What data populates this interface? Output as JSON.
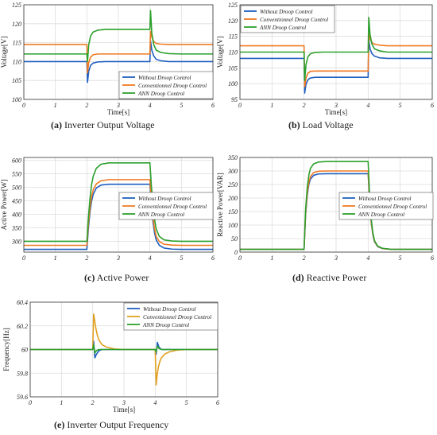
{
  "chart_data": [
    {
      "type": "line",
      "id": "a",
      "caption_letter": "(a)",
      "caption_text": "Inverter Output Voltage",
      "xlabel": "Time[s]",
      "ylabel": "Voltage[V]",
      "xlim": [
        0,
        6
      ],
      "ylim": [
        100,
        125
      ],
      "xticks": [
        "0",
        "1",
        "2",
        "3",
        "4",
        "5",
        "6"
      ],
      "yticks": [
        "100",
        "105",
        "110",
        "115",
        "120",
        "125"
      ],
      "grid": true,
      "legend_position": "bottom-right",
      "series": [
        {
          "name": "Without Droop Control",
          "color": "#1f5fbf",
          "x": [
            0,
            1.99,
            2.0,
            2.02,
            2.06,
            2.12,
            2.2,
            2.35,
            2.6,
            3,
            3.5,
            3.99,
            4.0,
            4.02,
            4.06,
            4.12,
            4.2,
            4.35,
            4.6,
            5,
            6
          ],
          "y": [
            110,
            110,
            110,
            104.5,
            107.5,
            109,
            109.6,
            109.9,
            110,
            110,
            110,
            110,
            110,
            115.5,
            113,
            111.5,
            110.6,
            110.2,
            110,
            110,
            110
          ]
        },
        {
          "name": "Conventionnel Droop Control",
          "color": "#f07a22",
          "x": [
            0,
            1.99,
            2.0,
            2.02,
            2.06,
            2.12,
            2.2,
            2.35,
            2.6,
            3,
            3.5,
            3.99,
            4.0,
            4.02,
            4.06,
            4.12,
            4.2,
            4.35,
            4.6,
            5,
            6
          ],
          "y": [
            114.5,
            114.5,
            114.5,
            107,
            109.8,
            111.2,
            111.8,
            112,
            112,
            112,
            112,
            112,
            112,
            118,
            116.5,
            115.3,
            114.8,
            114.6,
            114.5,
            114.5,
            114.5
          ]
        },
        {
          "name": "ANN Droop Control",
          "color": "#2ca02c",
          "x": [
            0,
            1.99,
            2.0,
            2.02,
            2.06,
            2.12,
            2.2,
            2.35,
            2.6,
            3,
            3.5,
            3.99,
            4.0,
            4.02,
            4.06,
            4.12,
            4.2,
            4.35,
            4.6,
            5,
            6
          ],
          "y": [
            112,
            112,
            112,
            110,
            114.5,
            116.8,
            117.8,
            118.3,
            118.5,
            118.5,
            118.5,
            118.5,
            118.5,
            123.5,
            117.5,
            114.5,
            113,
            112.4,
            112.1,
            112,
            112
          ]
        }
      ]
    },
    {
      "type": "line",
      "id": "b",
      "caption_letter": "(b)",
      "caption_text": "Load Voltage",
      "xlabel": "Time[s]",
      "ylabel": "Voltage[V]",
      "xlim": [
        0,
        6
      ],
      "ylim": [
        95,
        125
      ],
      "xticks": [
        "0",
        "1",
        "2",
        "3",
        "4",
        "5",
        "6"
      ],
      "yticks": [
        "95",
        "100",
        "105",
        "110",
        "115",
        "120",
        "125"
      ],
      "grid": true,
      "legend_position": "top-left",
      "series": [
        {
          "name": "Without Droop Control",
          "color": "#1f5fbf",
          "x": [
            0,
            1.99,
            2.0,
            2.02,
            2.06,
            2.12,
            2.2,
            2.35,
            2.6,
            3,
            3.5,
            3.99,
            4.0,
            4.02,
            4.06,
            4.12,
            4.2,
            4.35,
            4.6,
            5,
            6
          ],
          "y": [
            108,
            108,
            108,
            97,
            99.8,
            101.2,
            101.8,
            102,
            102,
            102,
            102,
            102,
            102,
            114,
            111,
            109.5,
            108.7,
            108.2,
            108,
            108,
            108
          ]
        },
        {
          "name": "Conventionnel Droop Control",
          "color": "#f07a22",
          "x": [
            0,
            1.99,
            2.0,
            2.02,
            2.06,
            2.12,
            2.2,
            2.35,
            2.6,
            3,
            3.5,
            3.99,
            4.0,
            4.02,
            4.06,
            4.12,
            4.2,
            4.35,
            4.6,
            5,
            6
          ],
          "y": [
            112,
            112,
            112,
            99,
            101.8,
            103.3,
            103.9,
            104,
            104,
            104,
            104,
            104,
            104,
            116,
            114.2,
            113,
            112.5,
            112.2,
            112,
            112,
            112
          ]
        },
        {
          "name": "ANN Droop Control",
          "color": "#2ca02c",
          "x": [
            0,
            1.99,
            2.0,
            2.02,
            2.06,
            2.12,
            2.2,
            2.35,
            2.6,
            3,
            3.5,
            3.99,
            4.0,
            4.02,
            4.06,
            4.12,
            4.2,
            4.35,
            4.6,
            5,
            6
          ],
          "y": [
            110,
            110,
            110,
            101,
            106,
            108.5,
            109.5,
            109.9,
            110,
            110,
            110,
            110,
            110,
            121,
            115.5,
            112.5,
            111,
            110.4,
            110,
            110,
            110
          ]
        }
      ]
    },
    {
      "type": "line",
      "id": "c",
      "caption_letter": "(c)",
      "caption_text": "Active Power",
      "xlabel": "",
      "ylabel": "Active Power[W]",
      "xlim": [
        0,
        6
      ],
      "ylim": [
        260,
        610
      ],
      "xticks": [
        "0",
        "1",
        "2",
        "3",
        "4",
        "5",
        "6"
      ],
      "yticks": [
        "300",
        "350",
        "400",
        "450",
        "500",
        "550",
        "600"
      ],
      "grid": true,
      "legend_position": "right",
      "series": [
        {
          "name": "Without Droop Control",
          "color": "#1f5fbf",
          "x": [
            0,
            1.99,
            2.0,
            2.05,
            2.1,
            2.15,
            2.2,
            2.3,
            2.45,
            2.7,
            3,
            3.5,
            3.99,
            4.0,
            4.05,
            4.1,
            4.15,
            4.2,
            4.3,
            4.45,
            4.7,
            5,
            6
          ],
          "y": [
            270,
            270,
            270,
            350,
            410,
            448,
            473,
            497,
            508,
            511,
            511,
            511,
            511,
            511,
            430,
            370,
            330,
            305,
            285,
            275,
            271,
            270,
            270
          ]
        },
        {
          "name": "Conventionnel Droop Control",
          "color": "#f07a22",
          "x": [
            0,
            1.99,
            2.0,
            2.05,
            2.1,
            2.15,
            2.2,
            2.3,
            2.45,
            2.7,
            3,
            3.5,
            3.99,
            4.0,
            4.05,
            4.1,
            4.15,
            4.2,
            4.3,
            4.45,
            4.7,
            5,
            6
          ],
          "y": [
            285,
            285,
            285,
            365,
            425,
            465,
            490,
            512,
            524,
            528,
            528,
            528,
            528,
            528,
            445,
            385,
            345,
            318,
            299,
            289,
            286,
            285,
            285
          ]
        },
        {
          "name": "ANN Droop Control",
          "color": "#2ca02c",
          "x": [
            0,
            1.99,
            2.0,
            2.05,
            2.1,
            2.15,
            2.2,
            2.3,
            2.45,
            2.7,
            3,
            3.5,
            3.99,
            4.0,
            4.05,
            4.1,
            4.15,
            4.2,
            4.3,
            4.45,
            4.7,
            5,
            6
          ],
          "y": [
            300,
            300,
            300,
            390,
            460,
            510,
            540,
            570,
            585,
            590,
            590,
            590,
            590,
            590,
            500,
            430,
            380,
            345,
            318,
            305,
            301,
            300,
            300
          ]
        }
      ]
    },
    {
      "type": "line",
      "id": "d",
      "caption_letter": "(d)",
      "caption_text": "Reactive Power",
      "xlabel": "",
      "ylabel": "Reactive Power[VAR]",
      "xlim": [
        0,
        6
      ],
      "ylim": [
        0,
        350
      ],
      "xticks": [
        "0",
        "1",
        "2",
        "3",
        "4",
        "5",
        "6"
      ],
      "yticks": [
        "0",
        "50",
        "100",
        "150",
        "200",
        "250",
        "300",
        "350"
      ],
      "grid": true,
      "legend_position": "right",
      "series": [
        {
          "name": "Without Droop Control",
          "color": "#1f5fbf",
          "x": [
            0,
            1.99,
            2.0,
            2.05,
            2.1,
            2.15,
            2.2,
            2.3,
            2.45,
            2.7,
            3,
            3.5,
            3.99,
            4.0,
            4.05,
            4.1,
            4.15,
            4.2,
            4.3,
            4.45,
            4.7,
            5,
            6
          ],
          "y": [
            10,
            10,
            10,
            140,
            210,
            250,
            270,
            284,
            289,
            290,
            290,
            290,
            290,
            290,
            175,
            105,
            62,
            38,
            20,
            13,
            10.5,
            10,
            10
          ]
        },
        {
          "name": "Conventionnel Droop Control",
          "color": "#f07a22",
          "x": [
            0,
            1.99,
            2.0,
            2.05,
            2.1,
            2.15,
            2.2,
            2.3,
            2.45,
            2.7,
            3,
            3.5,
            3.99,
            4.0,
            4.05,
            4.1,
            4.15,
            4.2,
            4.3,
            4.45,
            4.7,
            5,
            6
          ],
          "y": [
            10,
            10,
            10,
            145,
            218,
            258,
            280,
            294,
            299,
            300,
            300,
            300,
            300,
            300,
            180,
            108,
            64,
            39,
            21,
            13,
            10.5,
            10,
            10
          ]
        },
        {
          "name": "ANN Droop Control",
          "color": "#2ca02c",
          "x": [
            0,
            1.99,
            2.0,
            2.05,
            2.1,
            2.15,
            2.2,
            2.3,
            2.45,
            2.7,
            3,
            3.5,
            3.99,
            4.0,
            4.05,
            4.1,
            4.15,
            4.2,
            4.3,
            4.45,
            4.7,
            5,
            6
          ],
          "y": [
            10,
            10,
            10,
            160,
            240,
            285,
            310,
            326,
            333,
            335,
            335,
            335,
            335,
            335,
            200,
            118,
            70,
            42,
            22,
            14,
            10.5,
            10,
            10
          ]
        }
      ]
    },
    {
      "type": "line",
      "id": "e",
      "caption_letter": "(e)",
      "caption_text": "Inverter Output Frequency",
      "xlabel": "Time[s]",
      "ylabel": "Frequency[Hz]",
      "xlim": [
        0,
        6
      ],
      "ylim": [
        59.6,
        60.4
      ],
      "xticks": [
        "0",
        "1",
        "2",
        "3",
        "4",
        "5",
        "6"
      ],
      "yticks": [
        "59.6",
        "59.8",
        "60",
        "60.2",
        "60.4"
      ],
      "grid": true,
      "legend_position": "top-right",
      "series": [
        {
          "name": "Without Droop Control",
          "color": "#1f5fbf",
          "x": [
            0,
            1.99,
            2.0,
            2.03,
            2.07,
            2.12,
            2.2,
            2.3,
            2.5,
            3,
            3.99,
            4.0,
            4.03,
            4.07,
            4.12,
            4.2,
            4.3,
            4.5,
            5,
            6
          ],
          "y": [
            60,
            60,
            60,
            60.07,
            59.93,
            59.96,
            59.99,
            60,
            60,
            60,
            60,
            60,
            59.96,
            60.06,
            60.02,
            60,
            60,
            60,
            60,
            60
          ]
        },
        {
          "name": "Conventionnel Droop Control",
          "color": "#e0a020",
          "x": [
            0,
            1.99,
            2.0,
            2.03,
            2.06,
            2.1,
            2.15,
            2.2,
            2.3,
            2.45,
            2.7,
            3,
            3.99,
            4.0,
            4.03,
            4.06,
            4.1,
            4.15,
            4.2,
            4.3,
            4.45,
            4.7,
            5,
            6
          ],
          "y": [
            60,
            60,
            60,
            60.3,
            60.25,
            60.18,
            60.12,
            60.08,
            60.04,
            60.02,
            60.005,
            60,
            60,
            60,
            59.7,
            59.78,
            59.85,
            59.9,
            59.93,
            59.96,
            59.98,
            59.995,
            60,
            60
          ]
        },
        {
          "name": "ANN Droop Control",
          "color": "#2ca02c",
          "x": [
            0,
            1.99,
            2.0,
            2.03,
            2.07,
            2.12,
            2.2,
            2.3,
            2.5,
            3,
            3.99,
            4.0,
            4.03,
            4.07,
            4.12,
            4.2,
            4.3,
            4.5,
            5,
            6
          ],
          "y": [
            60,
            60,
            60,
            60.04,
            59.97,
            59.99,
            60,
            60,
            60,
            60,
            60,
            60,
            59.98,
            60.03,
            60.01,
            60,
            60,
            60,
            60,
            60
          ]
        }
      ]
    }
  ]
}
